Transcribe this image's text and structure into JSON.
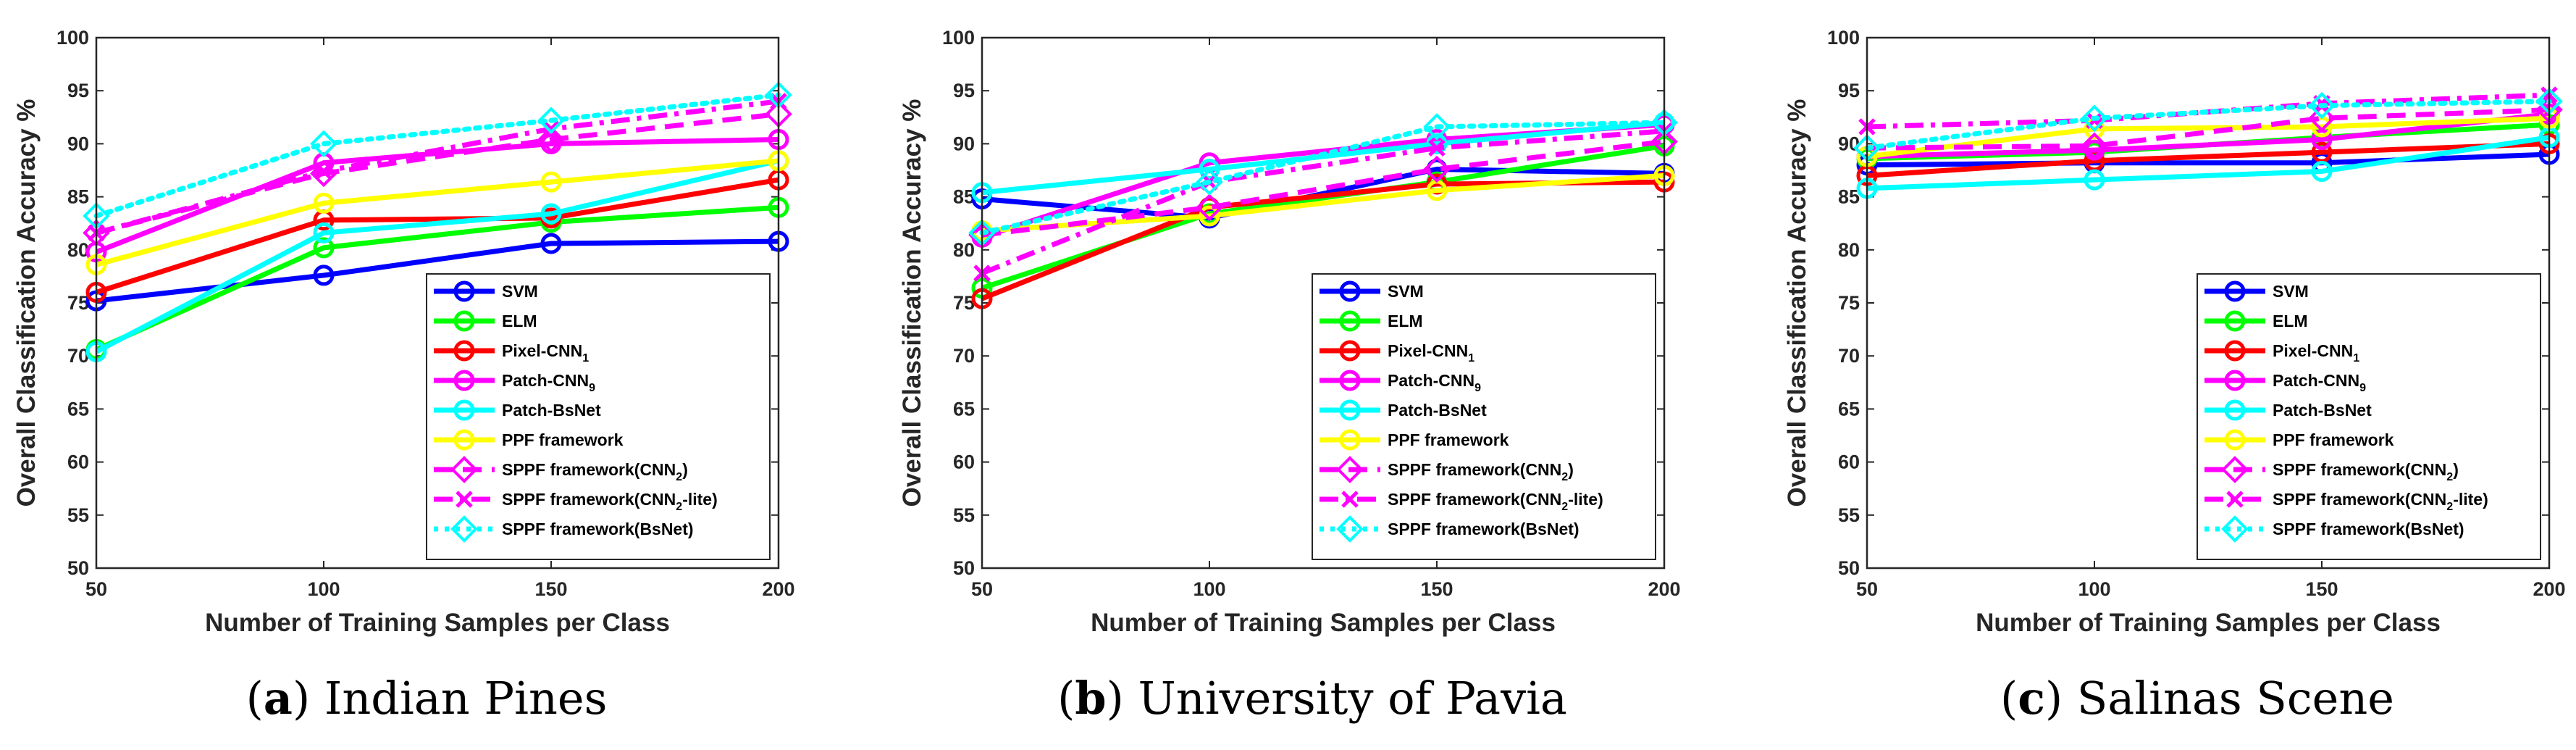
{
  "figure": {
    "x_categories": [
      "50",
      "100",
      "150",
      "200"
    ],
    "xlabel": "Number of Training Samples per Class",
    "ylabel": "Overall Classification Accuracy %",
    "ylim": [
      50,
      100
    ],
    "yticks": [
      50,
      55,
      60,
      65,
      70,
      75,
      80,
      85,
      90,
      95,
      100
    ],
    "legend_placement": "bottom-right"
  },
  "series_styles": [
    {
      "name": "SVM",
      "color": "#0000ff",
      "dash": "solid",
      "marker": "circle"
    },
    {
      "name": "ELM",
      "color": "#00ff00",
      "dash": "solid",
      "marker": "circle"
    },
    {
      "name": "Pixel-CNN1",
      "color": "#ff0000",
      "dash": "solid",
      "marker": "circle"
    },
    {
      "name": "Patch-CNN9",
      "color": "#ff00ff",
      "dash": "solid",
      "marker": "circle"
    },
    {
      "name": "Patch-BsNet",
      "color": "#00ffff",
      "dash": "solid",
      "marker": "circle"
    },
    {
      "name": "PPF framework",
      "color": "#ffff00",
      "dash": "solid",
      "marker": "circle"
    },
    {
      "name": "SPPF framework(CNN2)",
      "color": "#ff00ff",
      "dash": "dashed",
      "marker": "diamond"
    },
    {
      "name": "SPPF framework(CNN2-lite)",
      "color": "#ff00ff",
      "dash": "dashdot",
      "marker": "cross"
    },
    {
      "name": "SPPF framework(BsNet)",
      "color": "#00ffff",
      "dash": "dotted",
      "marker": "diamond"
    }
  ],
  "legend_labels": [
    {
      "main": "SVM",
      "sub": ""
    },
    {
      "main": "ELM",
      "sub": ""
    },
    {
      "main": "Pixel-CNN",
      "sub": "1",
      "after": ""
    },
    {
      "main": "Patch-CNN",
      "sub": "9",
      "after": ""
    },
    {
      "main": "Patch-BsNet",
      "sub": ""
    },
    {
      "main": "PPF framework",
      "sub": ""
    },
    {
      "main": "SPPF framework(CNN",
      "sub": "2",
      "after": ")"
    },
    {
      "main": "SPPF framework(CNN",
      "sub": "2",
      "after": "-lite)"
    },
    {
      "main": "SPPF framework(BsNet)",
      "sub": ""
    }
  ],
  "chart_data": [
    {
      "type": "line",
      "caption_letter": "a",
      "caption_text": "Indian Pines",
      "x": [
        50,
        100,
        150,
        200
      ],
      "series": [
        {
          "name": "SVM",
          "values": [
            75.2,
            77.6,
            80.6,
            80.8
          ]
        },
        {
          "name": "ELM",
          "values": [
            70.6,
            80.2,
            82.6,
            84.0
          ]
        },
        {
          "name": "Pixel-CNN1",
          "values": [
            76.0,
            82.8,
            83.0,
            86.6
          ]
        },
        {
          "name": "Patch-CNN9",
          "values": [
            79.8,
            88.2,
            90.0,
            90.4
          ]
        },
        {
          "name": "Patch-BsNet",
          "values": [
            70.4,
            81.6,
            83.4,
            88.4
          ]
        },
        {
          "name": "PPF framework",
          "values": [
            78.6,
            84.4,
            86.4,
            88.4
          ]
        },
        {
          "name": "SPPF framework(CNN2)",
          "values": [
            81.6,
            87.2,
            90.4,
            92.8
          ]
        },
        {
          "name": "SPPF framework(CNN2-lite)",
          "values": [
            81.6,
            87.4,
            91.4,
            94.0
          ]
        },
        {
          "name": "SPPF framework(BsNet)",
          "values": [
            83.2,
            90.0,
            92.2,
            94.6
          ]
        }
      ]
    },
    {
      "type": "line",
      "caption_letter": "b",
      "caption_text": "University of Pavia",
      "x": [
        50,
        100,
        150,
        200
      ],
      "series": [
        {
          "name": "SVM",
          "values": [
            84.8,
            83.0,
            87.6,
            87.2
          ]
        },
        {
          "name": "ELM",
          "values": [
            76.4,
            83.4,
            86.4,
            89.8
          ]
        },
        {
          "name": "Pixel-CNN1",
          "values": [
            75.4,
            84.0,
            86.2,
            86.4
          ]
        },
        {
          "name": "Patch-CNN9",
          "values": [
            81.2,
            88.2,
            90.4,
            91.8
          ]
        },
        {
          "name": "Patch-BsNet",
          "values": [
            85.4,
            87.6,
            90.0,
            92.0
          ]
        },
        {
          "name": "PPF framework",
          "values": [
            81.8,
            83.2,
            85.6,
            87.0
          ]
        },
        {
          "name": "SPPF framework(CNN2)",
          "values": [
            81.4,
            84.0,
            87.6,
            90.2
          ]
        },
        {
          "name": "SPPF framework(CNN2-lite)",
          "values": [
            77.8,
            86.4,
            89.6,
            91.2
          ]
        },
        {
          "name": "SPPF framework(BsNet)",
          "values": [
            81.6,
            86.4,
            91.6,
            92.0
          ]
        }
      ]
    },
    {
      "type": "line",
      "caption_letter": "c",
      "caption_text": "Salinas Scene",
      "x": [
        50,
        100,
        150,
        200
      ],
      "series": [
        {
          "name": "SVM",
          "values": [
            88.0,
            88.2,
            88.2,
            89.0
          ]
        },
        {
          "name": "ELM",
          "values": [
            88.6,
            89.2,
            90.6,
            91.8
          ]
        },
        {
          "name": "Pixel-CNN1",
          "values": [
            87.0,
            88.4,
            89.2,
            90.0
          ]
        },
        {
          "name": "Patch-CNN9",
          "values": [
            88.8,
            89.4,
            90.4,
            92.8
          ]
        },
        {
          "name": "Patch-BsNet",
          "values": [
            85.8,
            86.6,
            87.4,
            90.6
          ]
        },
        {
          "name": "PPF framework",
          "values": [
            88.8,
            91.4,
            91.6,
            92.4
          ]
        },
        {
          "name": "SPPF framework(CNN2)",
          "values": [
            89.6,
            89.8,
            92.4,
            93.2
          ]
        },
        {
          "name": "SPPF framework(CNN2-lite)",
          "values": [
            91.6,
            92.2,
            93.8,
            94.6
          ]
        },
        {
          "name": "SPPF framework(BsNet)",
          "values": [
            89.6,
            92.4,
            93.6,
            94.0
          ]
        }
      ]
    }
  ]
}
